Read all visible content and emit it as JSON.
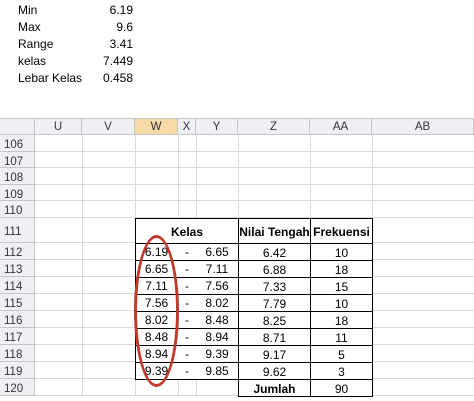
{
  "summary": [
    {
      "label": "Min",
      "value": 6.19
    },
    {
      "label": "Max",
      "value": 9.6
    },
    {
      "label": "Range",
      "value": 3.41
    },
    {
      "label": "kelas",
      "value": 7.449
    },
    {
      "label": "Lebar Kelas",
      "value": 0.458
    }
  ],
  "sheet": {
    "columns": [
      "U",
      "V",
      "W",
      "X",
      "Y",
      "Z",
      "AA",
      "AB"
    ],
    "rows": [
      106,
      107,
      108,
      109,
      110,
      111,
      112,
      113,
      114,
      115,
      116,
      117,
      118,
      119,
      120
    ]
  },
  "table": {
    "header": [
      "Kelas",
      "Nilai Tengah",
      "Frekuensi"
    ],
    "rows": [
      [
        6.19,
        "-",
        6.65,
        6.42,
        10
      ],
      [
        6.65,
        "-",
        7.11,
        6.88,
        18
      ],
      [
        7.11,
        "-",
        7.56,
        7.33,
        15
      ],
      [
        7.56,
        "-",
        8.02,
        7.79,
        10
      ],
      [
        8.02,
        "-",
        8.48,
        8.25,
        18
      ],
      [
        8.48,
        "-",
        8.94,
        8.71,
        11
      ],
      [
        8.94,
        "-",
        9.39,
        9.17,
        5
      ],
      [
        9.39,
        "-",
        9.85,
        9.62,
        3
      ]
    ],
    "total_label": "Jumlah",
    "total": 90
  }
}
